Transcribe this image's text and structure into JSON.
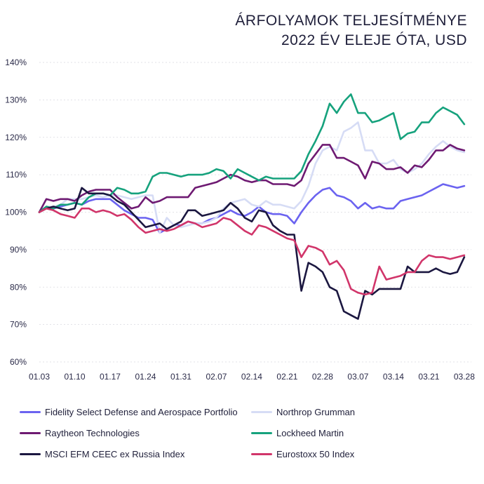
{
  "chart_data": {
    "type": "line",
    "title": [
      "ÁRFOLYAMOK TELJESÍTMÉNYE",
      "2022 ÉV ELEJE ÓTA, USD"
    ],
    "ylim": [
      60,
      140
    ],
    "y_ticks": [
      60,
      70,
      80,
      90,
      100,
      110,
      120,
      130,
      140
    ],
    "y_tick_labels": [
      "60%",
      "70%",
      "80%",
      "90%",
      "100%",
      "110%",
      "120%",
      "130%",
      "140%"
    ],
    "x_ticks": [
      "01.03",
      "01.10",
      "01.17",
      "01.24",
      "01.31",
      "02.07",
      "02.14",
      "02.21",
      "02.28",
      "03.07",
      "03.14",
      "03.21",
      "03.28"
    ],
    "x_tick_positions": [
      0,
      5,
      10,
      15,
      20,
      25,
      30,
      35,
      40,
      45,
      50,
      55,
      60
    ],
    "x_range": [
      0,
      61
    ],
    "grid": "horizontal",
    "legend_position": "bottom",
    "series": [
      {
        "name": "Fidelity Select Defense and Aerospace Portfolio",
        "color": "#6b63f0",
        "values": [
          100,
          101.5,
          101,
          101.5,
          102,
          102.5,
          102,
          103,
          103.5,
          103.5,
          103.5,
          102,
          100.5,
          99.5,
          98.5,
          98.5,
          98,
          94.5,
          95.5,
          96.5,
          96.5,
          97.5,
          97,
          97,
          98,
          98.5,
          99.5,
          100.5,
          99.5,
          99,
          100,
          101.5,
          100,
          99.5,
          99.5,
          99,
          97,
          100,
          102.5,
          104.5,
          106,
          106.5,
          104.5,
          104,
          103,
          101,
          102.5,
          101,
          101.5,
          101,
          101,
          103,
          103.5,
          104,
          104.5,
          105.5,
          106.5,
          107.5,
          107,
          106.5,
          107
        ]
      },
      {
        "name": "Northrop Grumman",
        "color": "#d6dcf5",
        "values": [
          100,
          101.5,
          101.5,
          102,
          103.5,
          103.5,
          103.5,
          104,
          104.5,
          104,
          104.5,
          104.5,
          104,
          103.5,
          104,
          104.5,
          104.5,
          94.5,
          98.5,
          96.5,
          96,
          96.5,
          97,
          97,
          97.5,
          98.5,
          101,
          102.5,
          103,
          103.5,
          102,
          101.5,
          103,
          102,
          102,
          101.5,
          101,
          103,
          107,
          113,
          116.5,
          117.5,
          116.5,
          121.5,
          122.5,
          124,
          116.5,
          116.5,
          113,
          113,
          114,
          111.5,
          110.5,
          111.5,
          113,
          115.5,
          117.5,
          119,
          117.5,
          116.5,
          116
        ]
      },
      {
        "name": "Raytheon Technologies",
        "color": "#6e1a72",
        "values": [
          100,
          103.5,
          103,
          103.5,
          103.5,
          103,
          104.5,
          105.5,
          106,
          106,
          106,
          104,
          102.5,
          101,
          101.5,
          104,
          102.5,
          103,
          104,
          104,
          104,
          104,
          106.5,
          107,
          107.5,
          108,
          109,
          110,
          109.5,
          108.5,
          108,
          108.5,
          108.5,
          107.5,
          107.5,
          107.5,
          107,
          108.5,
          113,
          115.5,
          118,
          118,
          114.5,
          114.5,
          113.5,
          112.5,
          109,
          113.5,
          113,
          111.5,
          111.5,
          112,
          110.5,
          112.5,
          112,
          114,
          116.5,
          116.5,
          118,
          117,
          116.5
        ]
      },
      {
        "name": "Lockheed Martin",
        "color": "#16a27d",
        "values": [
          100,
          101.5,
          101,
          102,
          102,
          102.5,
          102,
          104,
          105,
          105,
          104.5,
          106.5,
          106,
          105,
          105,
          105.5,
          109.5,
          110.5,
          110.5,
          110,
          109.5,
          110,
          110,
          110,
          110.5,
          111.5,
          111,
          109,
          111.5,
          110.5,
          109.5,
          108.5,
          109.5,
          109,
          109,
          109,
          109,
          111,
          115.5,
          119,
          123,
          129,
          126.5,
          129.5,
          131.5,
          126.5,
          126.5,
          124,
          124.5,
          125.5,
          126.5,
          119.5,
          121,
          121.5,
          124,
          124,
          126.5,
          128,
          127,
          126,
          123.5
        ]
      },
      {
        "name": "MSCI EFM CEEC ex Russia Index",
        "color": "#1b1740",
        "values": [
          100,
          101,
          101.5,
          101,
          100.5,
          101,
          106.5,
          105,
          105,
          105,
          104.5,
          103,
          102,
          100,
          98,
          96,
          96.5,
          97,
          95.5,
          96.5,
          97.5,
          100.5,
          100.5,
          99,
          99.5,
          100,
          100.5,
          102.5,
          101,
          98.5,
          97.5,
          100.5,
          100,
          96.5,
          95,
          94,
          94,
          79,
          86.5,
          85.5,
          84,
          80,
          79,
          73.5,
          72.5,
          71.5,
          79,
          78,
          79.5,
          79.5,
          79.5,
          79.5,
          85.5,
          84,
          84,
          84,
          85,
          84,
          83.5,
          84,
          88
        ]
      },
      {
        "name": "Eurostoxx 50 Index",
        "color": "#d1356a",
        "values": [
          100,
          101,
          100.5,
          99.5,
          99,
          98.5,
          101,
          101,
          100,
          100.5,
          100,
          99,
          99.5,
          98,
          96,
          94.5,
          95,
          95.5,
          95,
          95.5,
          96.5,
          97.5,
          97,
          96,
          96.5,
          97,
          98.5,
          98,
          96.5,
          95,
          94,
          96.5,
          96,
          95,
          94,
          93,
          92.5,
          88,
          91,
          90.5,
          89.5,
          86,
          87,
          84.5,
          79.5,
          78.5,
          78,
          78.5,
          85.5,
          82,
          82.5,
          83,
          84,
          84,
          87,
          88.5,
          88,
          88,
          87.5,
          88,
          88.5
        ]
      }
    ]
  }
}
